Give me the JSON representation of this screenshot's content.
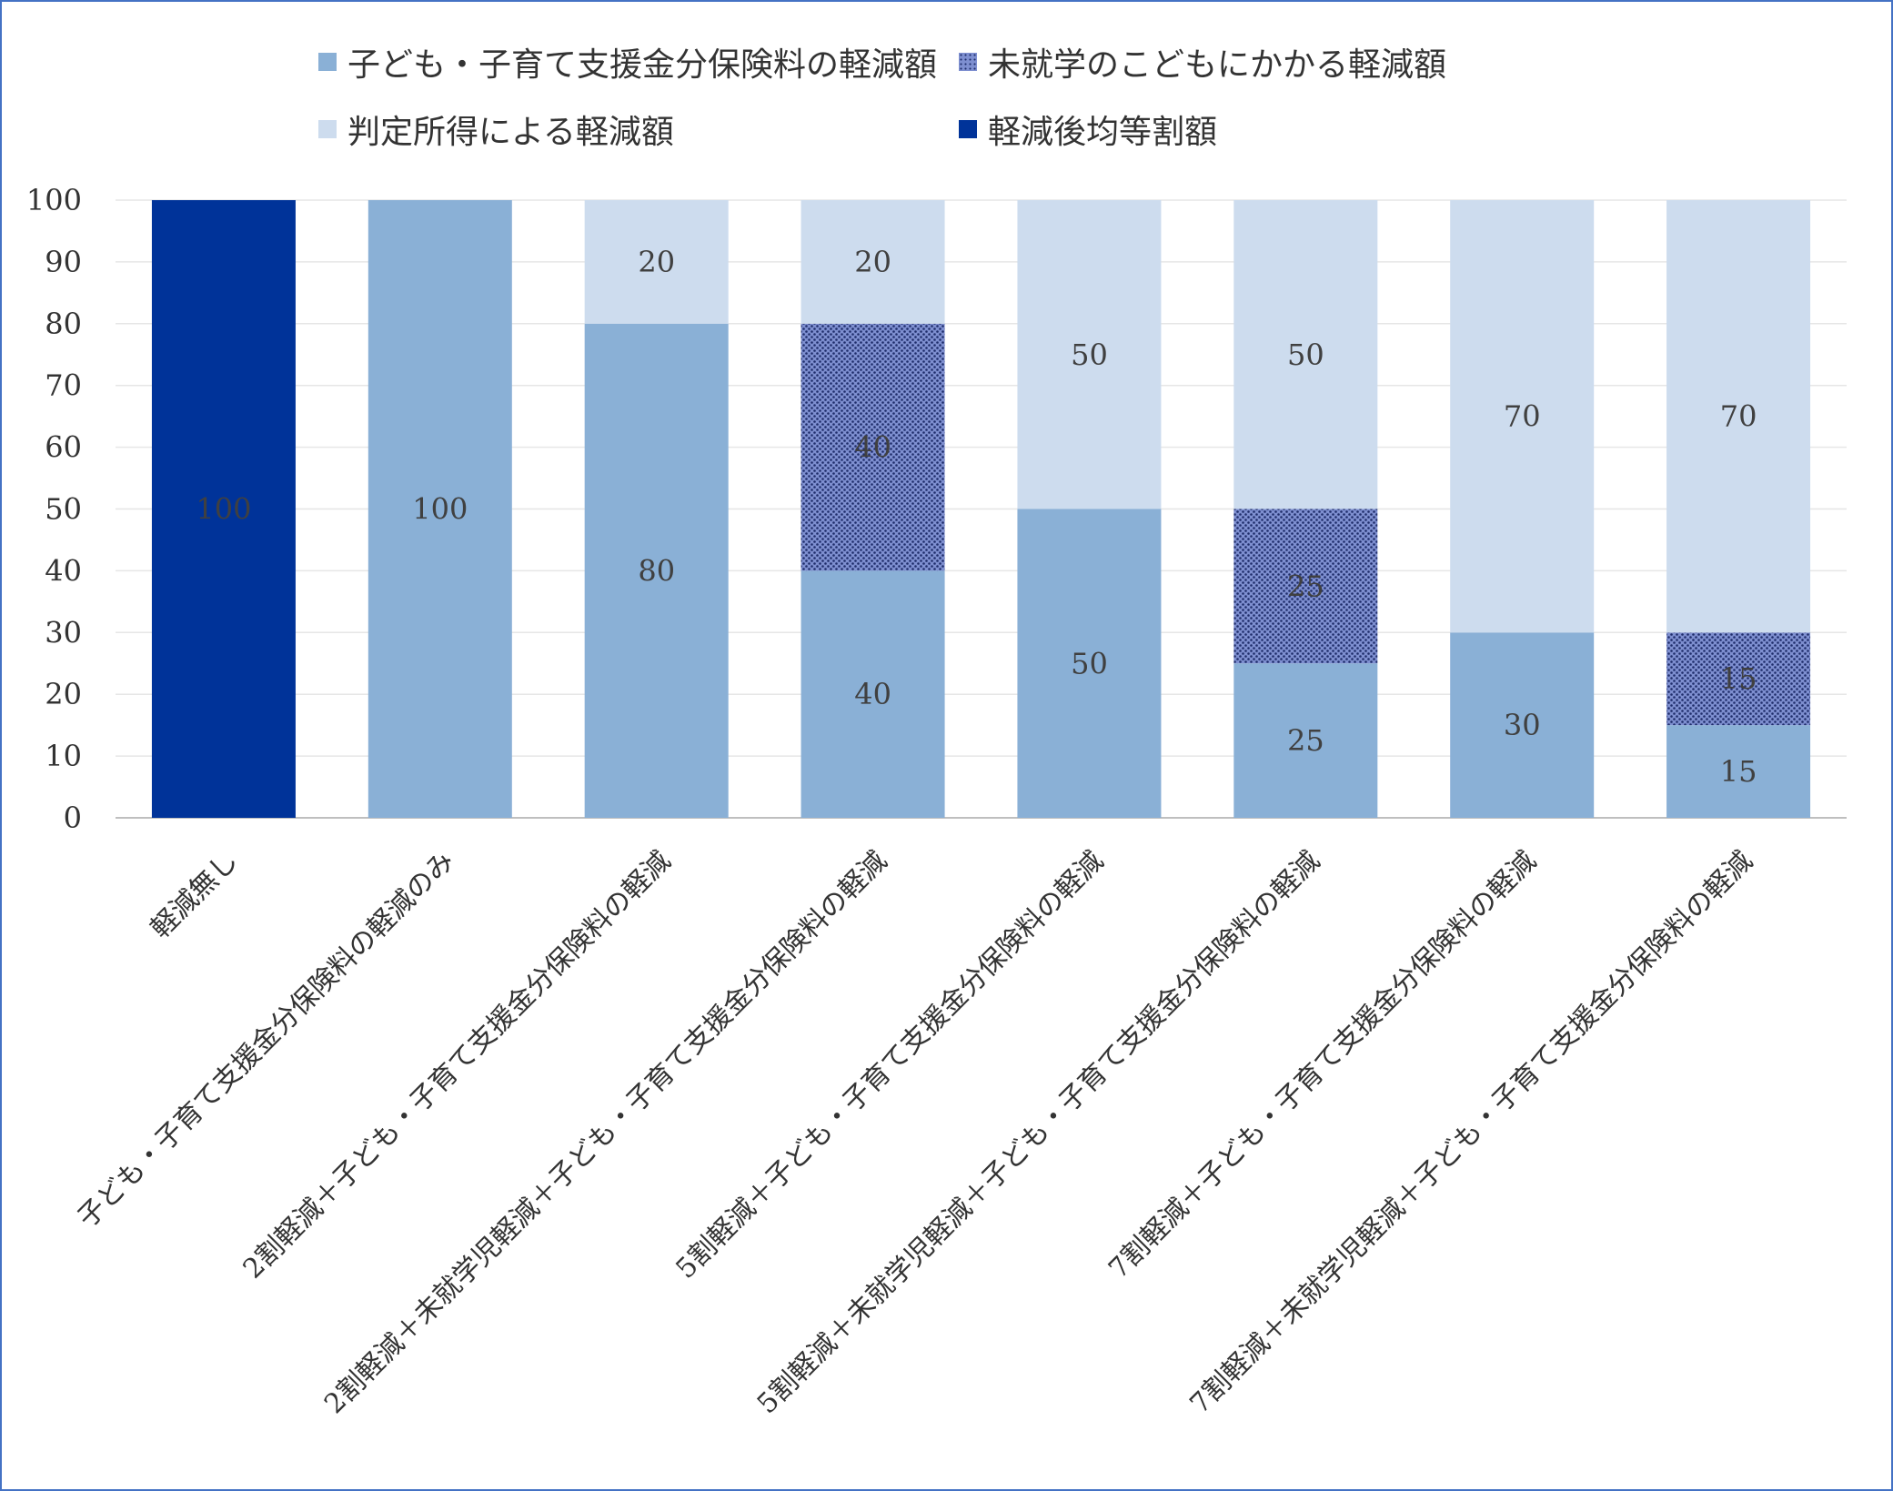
{
  "chart_data": {
    "type": "bar",
    "stacked": true,
    "title": "",
    "xlabel": "",
    "ylabel": "",
    "ylim": [
      0,
      100
    ],
    "yticks": [
      0,
      10,
      20,
      30,
      40,
      50,
      60,
      70,
      80,
      90,
      100
    ],
    "grid": true,
    "legend_position": "top",
    "categories": [
      "軽減無し",
      "子ども・子育て支援金分保険料の軽減のみ",
      "2割軽減＋子ども・子育て支援金分保険料の軽減",
      "2割軽減＋未就学児軽減＋子ども・子育て支援金分保険料の軽減",
      "5割軽減＋子ども・子育て支援金分保険料の軽減",
      "5割軽減＋未就学児軽減＋子ども・子育て支援金分保険料の軽減",
      "7割軽減＋子ども・子育て支援金分保険料の軽減",
      "7割軽減＋未就学児軽減＋子ども・子育て支援金分保険料の軽減"
    ],
    "series": [
      {
        "name": "軽減後均等割額",
        "color": "#003399",
        "pattern": "solid",
        "values": [
          100,
          null,
          null,
          null,
          null,
          null,
          null,
          null
        ]
      },
      {
        "name": "子ども・子育て支援金分保険料の軽減額",
        "color": "#8ab0d6",
        "pattern": "solid",
        "values": [
          null,
          100,
          80,
          40,
          50,
          25,
          30,
          15
        ]
      },
      {
        "name": "未就学のこどもにかかる軽減額",
        "color": "#7e8fd0",
        "pattern": "dotted",
        "values": [
          null,
          null,
          null,
          40,
          null,
          25,
          null,
          15
        ]
      },
      {
        "name": "判定所得による軽減額",
        "color": "#cddcee",
        "pattern": "solid",
        "values": [
          null,
          null,
          20,
          20,
          50,
          50,
          70,
          70
        ]
      }
    ],
    "legend_order": [
      1,
      2,
      3,
      0
    ]
  }
}
